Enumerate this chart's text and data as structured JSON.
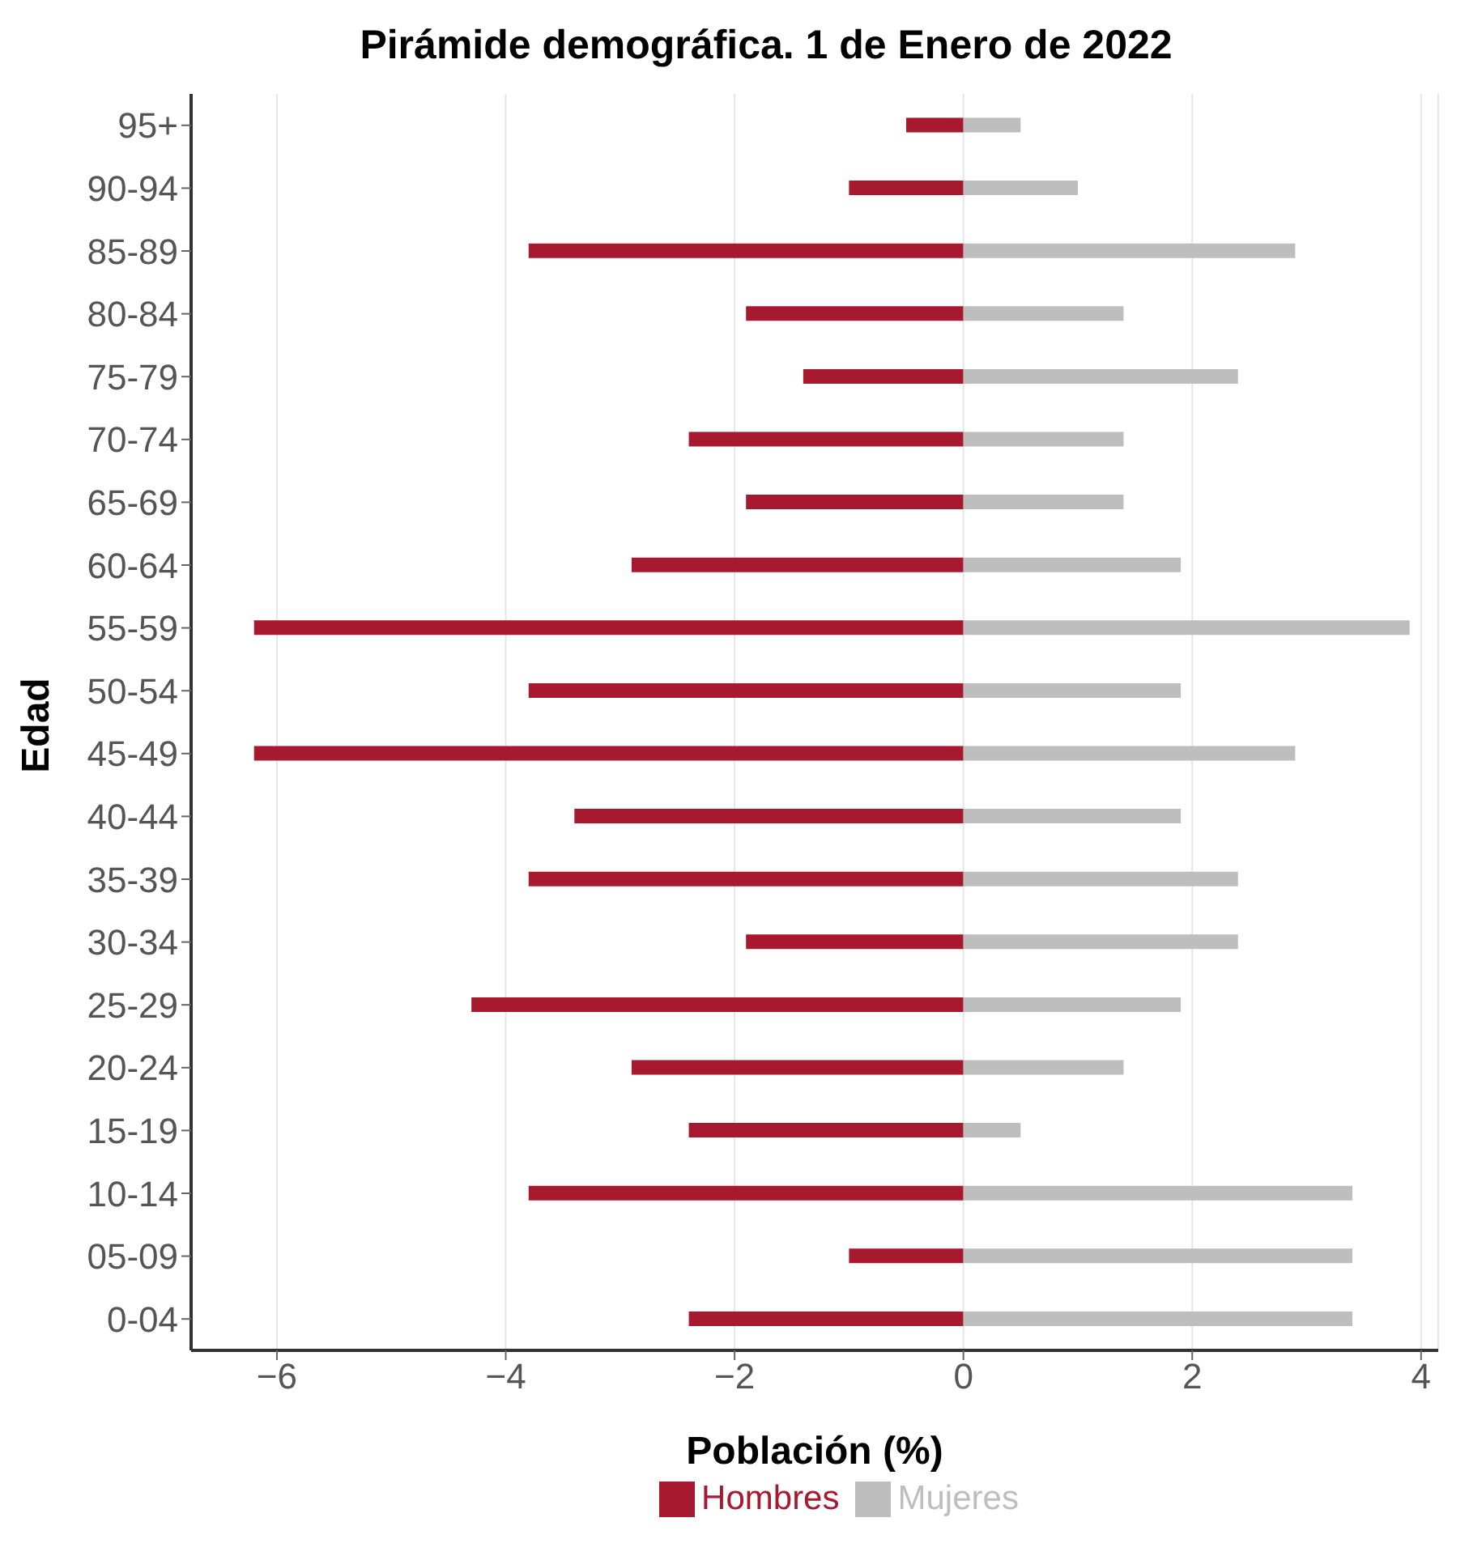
{
  "chart_data": {
    "type": "bar",
    "orientation": "horizontal",
    "stacked": true,
    "title": "Pirámide demográfica. 1 de Enero de 2022",
    "xlabel": "Población (%)",
    "ylabel": "Edad",
    "categories": [
      "95+",
      "90-94",
      "85-89",
      "80-84",
      "75-79",
      "70-74",
      "65-69",
      "60-64",
      "55-59",
      "50-54",
      "45-49",
      "40-44",
      "35-39",
      "30-34",
      "25-29",
      "20-24",
      "15-19",
      "10-14",
      "05-09",
      "0-04"
    ],
    "series": [
      {
        "name": "Hombres",
        "color": "#a6192e",
        "values": [
          -0.5,
          -1,
          -3.8,
          -1.9,
          -1.4,
          -2.4,
          -1.9,
          -2.9,
          -6.2,
          -3.8,
          -6.2,
          -3.4,
          -3.8,
          -1.9,
          -4.3,
          -2.9,
          -2.4,
          -3.8,
          -1,
          -2.4
        ]
      },
      {
        "name": "Mujeres",
        "color": "#bebebe",
        "values": [
          0.5,
          1,
          2.9,
          1.4,
          2.4,
          1.4,
          1.4,
          1.9,
          3.9,
          1.9,
          2.9,
          1.9,
          2.4,
          2.4,
          1.9,
          1.4,
          0.5,
          3.4,
          3.4,
          3.4
        ]
      }
    ],
    "xlim": [
      -6.75,
      4.15
    ],
    "xticks": [
      {
        "value": -6,
        "label": "−6"
      },
      {
        "value": -4,
        "label": "−4"
      },
      {
        "value": -2,
        "label": "−2"
      },
      0,
      2,
      4
    ],
    "grid": "x",
    "legend": "bottom"
  }
}
